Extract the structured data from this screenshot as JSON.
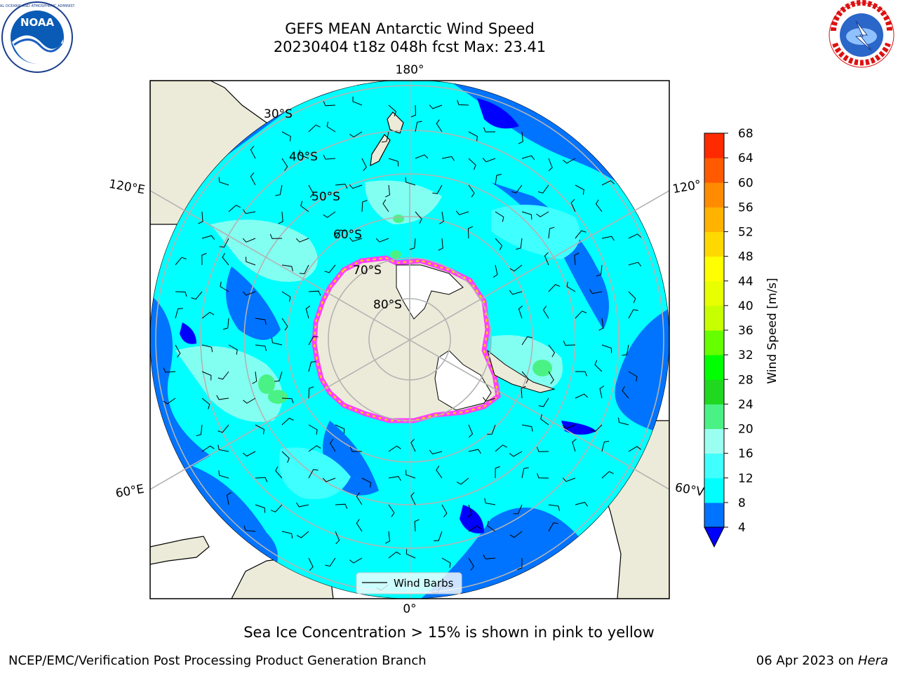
{
  "title": {
    "line1": "GEFS MEAN Antarctic Wind Speed",
    "line2": "20230404 t18z 048h fcst   Max: 23.41"
  },
  "logos": {
    "left": "NOAA",
    "right": "NATIONAL WEATHER SERVICE"
  },
  "map": {
    "projection": "south-polar-stereographic",
    "longitude_labels": {
      "top": "180°",
      "bottom": "0°",
      "upper_left": "120°E",
      "upper_right": "120°",
      "lower_left": "60°E",
      "lower_right": "60°V"
    },
    "latitude_labels": [
      "30°S",
      "40°S",
      "50°S",
      "60°S",
      "70°S",
      "80°S"
    ],
    "legend_label": "Wind Barbs",
    "colors": {
      "land": "#ecebd9",
      "ice_shelf": "#ffffff",
      "gridline": "#b3b3b3",
      "sea_ice_outer": "#ff40ff",
      "sea_ice_inner": "#ffcc00"
    }
  },
  "colorbar": {
    "label": "Wind Speed [m/s]",
    "ticks": [
      "4",
      "8",
      "12",
      "16",
      "20",
      "24",
      "28",
      "32",
      "36",
      "40",
      "44",
      "48",
      "52",
      "56",
      "60",
      "64",
      "68"
    ],
    "colors": [
      "#0073ff",
      "#00ffff",
      "#40ffff",
      "#9afff0",
      "#4af285",
      "#1fd81f",
      "#00ff00",
      "#66ff00",
      "#c8ff00",
      "#e8ff00",
      "#ffff00",
      "#ffd800",
      "#ffb300",
      "#ff8c00",
      "#ff5a00",
      "#ff2a00"
    ],
    "under_color": "#0000ff"
  },
  "footer": {
    "note": "Sea Ice Concentration > 15% is shown in pink to yellow",
    "credit": "NCEP/EMC/Verification Post Processing Product Generation Branch",
    "date": "06 Apr 2023 on ",
    "machine": "Hera"
  }
}
